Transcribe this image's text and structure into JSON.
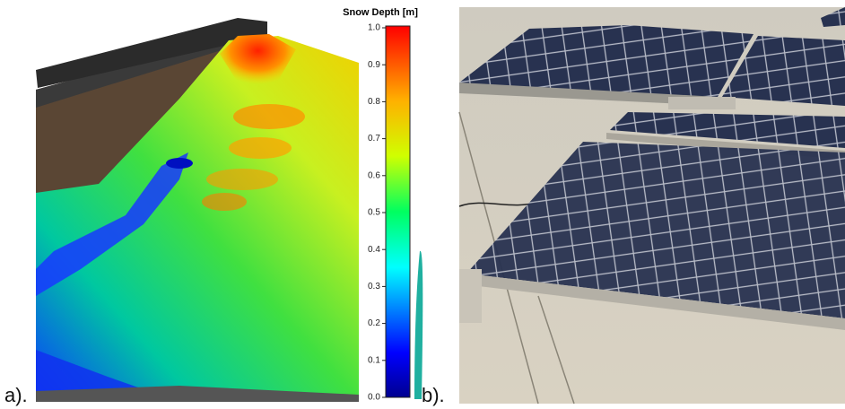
{
  "panels": [
    {
      "label": "a).",
      "colorbar": {
        "title": "Snow Depth [m]",
        "lim": [
          0,
          1
        ],
        "ticks": [
          {
            "value": 0,
            "label": "0.0"
          },
          0.1,
          0.2,
          0.3,
          0.4,
          0.5,
          0.6,
          0.7,
          0.8,
          0.9,
          {
            "value": 1,
            "label": "1.0"
          }
        ]
      }
    },
    {
      "label": "b)."
    }
  ]
}
